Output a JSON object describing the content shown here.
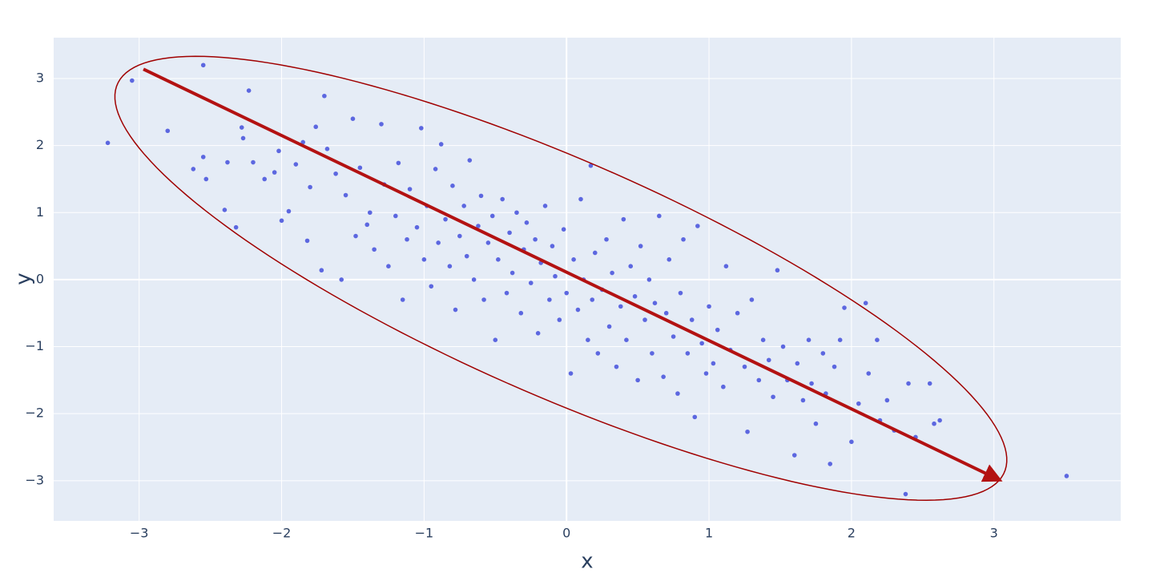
{
  "chart_data": {
    "type": "scatter",
    "x_title": "x",
    "y_title": "y",
    "color": "#5c67e0",
    "grid": true,
    "xlim": [
      -3.6,
      3.89
    ],
    "ylim": [
      -3.6,
      3.61
    ],
    "xticks": [
      {
        "value": -3,
        "label": "−3"
      },
      {
        "value": -2,
        "label": "−2"
      },
      {
        "value": -1,
        "label": "−1"
      },
      0,
      1,
      2,
      3
    ],
    "yticks": [
      {
        "value": -3,
        "label": "−3"
      },
      {
        "value": -2,
        "label": "−2"
      },
      {
        "value": -1,
        "label": "−1"
      },
      0,
      1,
      2,
      3
    ],
    "x": [
      -3.22,
      -3.05,
      -2.55,
      -2.8,
      -2.23,
      -1.7,
      -2.62,
      -2.55,
      -2.53,
      -2.4,
      -2.38,
      -2.32,
      -2.28,
      -2.27,
      -2.2,
      -2.12,
      -2.05,
      -2.02,
      -2.0,
      -1.95,
      -1.9,
      -1.85,
      -1.82,
      -1.8,
      -1.76,
      -1.72,
      -1.68,
      -1.62,
      -1.58,
      -1.55,
      -1.5,
      -1.48,
      -1.45,
      -1.4,
      -1.38,
      -1.35,
      -1.3,
      -1.28,
      -1.25,
      -1.2,
      -1.18,
      -1.15,
      -1.12,
      -1.1,
      -1.05,
      -1.02,
      -1.0,
      -0.98,
      -0.95,
      -0.92,
      -0.9,
      -0.88,
      -0.85,
      -0.82,
      -0.8,
      -0.78,
      -0.75,
      -0.72,
      -0.7,
      -0.68,
      -0.65,
      -0.62,
      -0.6,
      -0.58,
      -0.55,
      -0.52,
      -0.5,
      -0.48,
      -0.45,
      -0.42,
      -0.4,
      -0.38,
      -0.35,
      -0.32,
      -0.3,
      -0.28,
      -0.25,
      -0.22,
      -0.2,
      -0.18,
      -0.15,
      -0.12,
      -0.1,
      -0.08,
      -0.05,
      -0.02,
      0.0,
      0.03,
      0.05,
      0.08,
      0.1,
      0.12,
      0.15,
      0.17,
      0.18,
      0.2,
      0.22,
      0.25,
      0.28,
      0.3,
      0.32,
      0.35,
      0.38,
      0.4,
      0.42,
      0.45,
      0.48,
      0.5,
      0.52,
      0.55,
      0.58,
      0.6,
      0.62,
      0.65,
      0.68,
      0.7,
      0.72,
      0.75,
      0.78,
      0.8,
      0.82,
      0.85,
      0.88,
      0.9,
      0.92,
      0.95,
      0.98,
      1.0,
      1.03,
      1.06,
      1.1,
      1.12,
      1.15,
      1.2,
      1.25,
      1.27,
      1.3,
      1.35,
      1.38,
      1.42,
      1.45,
      1.48,
      1.52,
      1.55,
      1.6,
      1.62,
      1.66,
      1.7,
      1.72,
      1.75,
      1.8,
      1.82,
      1.85,
      1.88,
      1.92,
      1.95,
      2.0,
      2.05,
      2.1,
      2.12,
      2.18,
      2.2,
      2.25,
      2.3,
      2.38,
      2.4,
      2.45,
      2.55,
      2.58,
      2.62,
      3.51
    ],
    "values": [
      2.04,
      2.97,
      3.2,
      2.22,
      2.82,
      2.74,
      1.65,
      1.83,
      1.5,
      1.04,
      1.75,
      0.78,
      2.27,
      2.11,
      1.75,
      1.5,
      1.6,
      1.92,
      0.88,
      1.02,
      1.72,
      2.05,
      0.58,
      1.38,
      2.28,
      0.14,
      1.95,
      1.58,
      0.0,
      1.26,
      2.4,
      0.65,
      1.67,
      0.82,
      1.0,
      0.45,
      2.32,
      1.42,
      0.2,
      0.95,
      1.74,
      -0.3,
      0.6,
      1.35,
      0.78,
      2.26,
      0.3,
      1.1,
      -0.1,
      1.65,
      0.55,
      2.02,
      0.9,
      0.2,
      1.4,
      -0.45,
      0.65,
      1.1,
      0.35,
      1.78,
      0.0,
      0.8,
      1.25,
      -0.3,
      0.55,
      0.95,
      -0.9,
      0.3,
      1.2,
      -0.2,
      0.7,
      0.1,
      1.0,
      -0.5,
      0.45,
      0.85,
      -0.05,
      0.6,
      -0.8,
      0.25,
      1.1,
      -0.3,
      0.5,
      0.05,
      -0.6,
      0.75,
      -0.2,
      -1.4,
      0.3,
      -0.45,
      1.2,
      0.0,
      -0.9,
      1.7,
      -0.3,
      0.4,
      -1.1,
      -0.15,
      0.6,
      -0.7,
      0.1,
      -1.3,
      -0.4,
      0.9,
      -0.9,
      0.2,
      -0.25,
      -1.5,
      0.5,
      -0.6,
      0.0,
      -1.1,
      -0.35,
      0.95,
      -1.45,
      -0.5,
      0.3,
      -0.85,
      -1.7,
      -0.2,
      0.6,
      -1.1,
      -0.6,
      -2.05,
      0.8,
      -0.95,
      -1.4,
      -0.4,
      -1.25,
      -0.75,
      -1.6,
      0.2,
      -1.05,
      -0.5,
      -1.3,
      -2.27,
      -0.3,
      -1.5,
      -0.9,
      -1.2,
      -1.75,
      0.14,
      -1.0,
      -1.5,
      -2.62,
      -1.25,
      -1.8,
      -0.9,
      -1.55,
      -2.15,
      -1.1,
      -1.7,
      -2.75,
      -1.3,
      -0.9,
      -0.42,
      -2.42,
      -1.85,
      -0.35,
      -1.4,
      -0.9,
      -2.1,
      -1.8,
      -2.25,
      -3.2,
      -1.55,
      -2.35,
      -1.55,
      -2.15,
      -2.1,
      -2.93
    ],
    "arrow": {
      "start": [
        -2.97,
        3.14
      ],
      "end": [
        3.03,
        -2.98
      ],
      "color": "#b31212"
    },
    "ellipse": {
      "center": [
        -0.04,
        0.02
      ],
      "axis1": [
        -3.13,
        2.74
      ],
      "axis2": [
        0.05,
        1.86
      ],
      "color": "#a00000"
    }
  }
}
